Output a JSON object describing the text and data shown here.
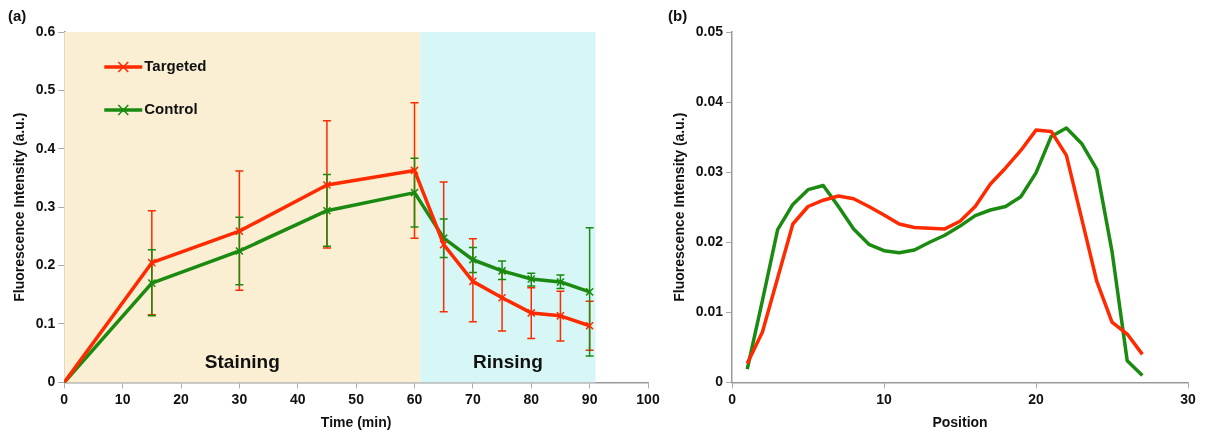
{
  "chart_data": [
    {
      "type": "line",
      "title": "(a)",
      "xlabel": "Time (min)",
      "ylabel": "Fluorescence Intensity (a.u.)",
      "x": [
        0,
        15,
        30,
        45,
        60,
        65,
        70,
        75,
        80,
        85,
        90
      ],
      "xlim": [
        0,
        100
      ],
      "xticks": [
        0,
        10,
        20,
        30,
        40,
        50,
        60,
        70,
        80,
        90,
        100
      ],
      "ylim": [
        0,
        0.6
      ],
      "yticks": [
        0,
        0.1,
        0.2,
        0.3,
        0.4,
        0.5,
        0.6
      ],
      "marker": "cross",
      "legend": "top left",
      "bands": [
        {
          "axis": "x",
          "from": 0,
          "to": 61,
          "label": "Staining",
          "color": "#faefd2"
        },
        {
          "axis": "x",
          "from": 61,
          "to": 91,
          "label": "Rinsing",
          "color": "#d6f7f5"
        }
      ],
      "series": [
        {
          "name": "Targeted",
          "color": "#ff2a00",
          "values": [
            0,
            0.205,
            0.259,
            0.338,
            0.363,
            0.236,
            0.173,
            0.145,
            0.119,
            0.114,
            0.097
          ],
          "errors": [
            null,
            [
              0.116,
              0.294
            ],
            [
              0.158,
              0.362
            ],
            [
              0.23,
              0.448
            ],
            [
              0.247,
              0.479
            ],
            [
              0.121,
              0.343
            ],
            [
              0.104,
              0.246
            ],
            [
              0.088,
              0.192
            ],
            [
              0.075,
              0.162
            ],
            [
              0.071,
              0.156
            ],
            [
              0.055,
              0.139
            ]
          ]
        },
        {
          "name": "Control",
          "color": "#1a8a10",
          "values": [
            0,
            0.17,
            0.225,
            0.294,
            0.325,
            0.247,
            0.21,
            0.191,
            0.177,
            0.172,
            0.155
          ],
          "errors": [
            null,
            [
              0.114,
              0.227
            ],
            [
              0.167,
              0.283
            ],
            [
              0.233,
              0.356
            ],
            [
              0.266,
              0.384
            ],
            [
              0.214,
              0.28
            ],
            [
              0.188,
              0.231
            ],
            [
              0.176,
              0.208
            ],
            [
              0.165,
              0.187
            ],
            [
              0.161,
              0.184
            ],
            [
              0.045,
              0.265
            ]
          ]
        }
      ]
    },
    {
      "type": "line",
      "title": "(b)",
      "xlabel": "Position",
      "ylabel": "Fluorescence Intensity (a.u.)",
      "x": [
        1,
        2,
        3,
        4,
        5,
        6,
        7,
        8,
        9,
        10,
        11,
        12,
        13,
        14,
        15,
        16,
        17,
        18,
        19,
        20,
        21,
        22,
        23,
        24,
        25,
        26,
        27
      ],
      "xlim": [
        0,
        30
      ],
      "xticks": [
        0,
        10,
        20,
        30
      ],
      "ylim": [
        0,
        0.05
      ],
      "yticks": [
        0,
        0.01,
        0.02,
        0.03,
        0.04,
        0.05
      ],
      "series": [
        {
          "color": "#ff2a00",
          "values": [
            0.0027,
            0.0072,
            0.0149,
            0.0226,
            0.0251,
            0.026,
            0.0266,
            0.0262,
            0.0251,
            0.0239,
            0.0226,
            0.0221,
            0.022,
            0.0219,
            0.023,
            0.0251,
            0.0283,
            0.0306,
            0.0331,
            0.036,
            0.0358,
            0.0324,
            0.0234,
            0.0144,
            0.0086,
            0.0069,
            0.004
          ]
        },
        {
          "color": "#1a8a10",
          "values": [
            0.0019,
            0.0117,
            0.0218,
            0.0254,
            0.0275,
            0.0281,
            0.0251,
            0.0219,
            0.0197,
            0.0188,
            0.0185,
            0.0189,
            0.02,
            0.021,
            0.0223,
            0.0238,
            0.0246,
            0.0251,
            0.0265,
            0.0299,
            0.0351,
            0.0363,
            0.0341,
            0.0304,
            0.0187,
            0.0031,
            0.001
          ]
        }
      ]
    }
  ]
}
